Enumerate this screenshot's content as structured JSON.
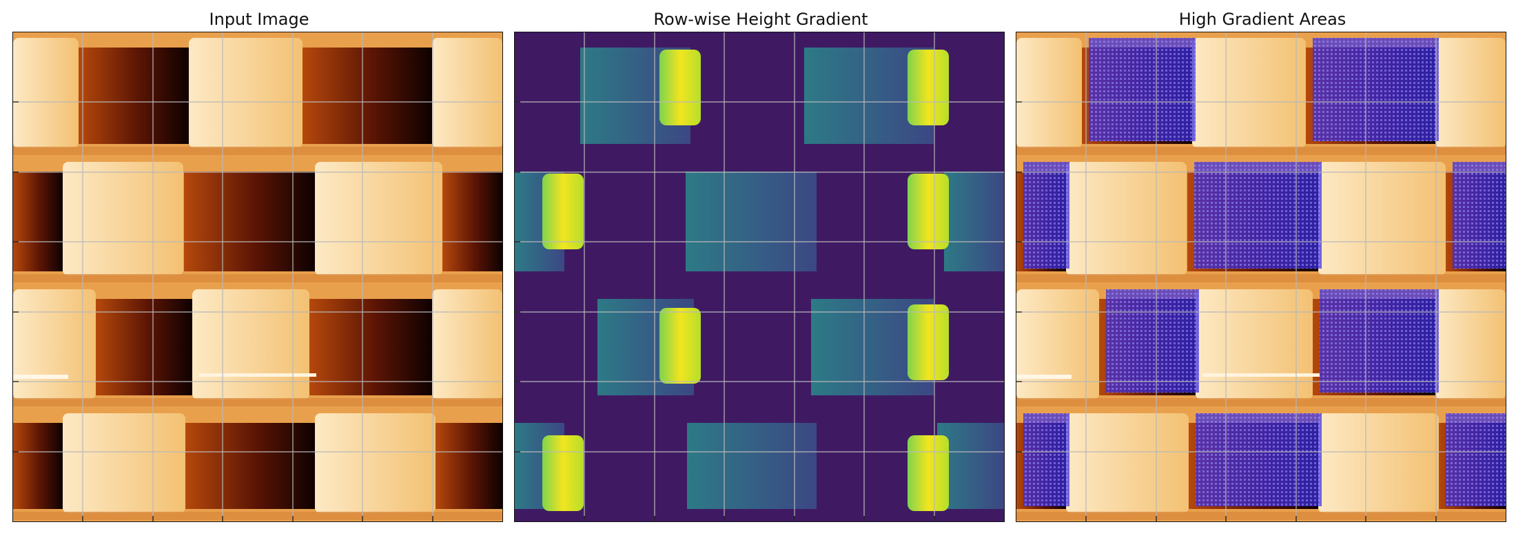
{
  "figure": {
    "panels": [
      {
        "title": "Input Image",
        "colormap": "afmhot",
        "overlay": false
      },
      {
        "title": "Row-wise Height Gradient",
        "colormap": "viridis",
        "overlay": false
      },
      {
        "title": "High Gradient Areas",
        "colormap": "afmhot",
        "overlay": true,
        "overlay_color": "#3d2fd6"
      }
    ],
    "grid": true,
    "tick_count": 7
  }
}
